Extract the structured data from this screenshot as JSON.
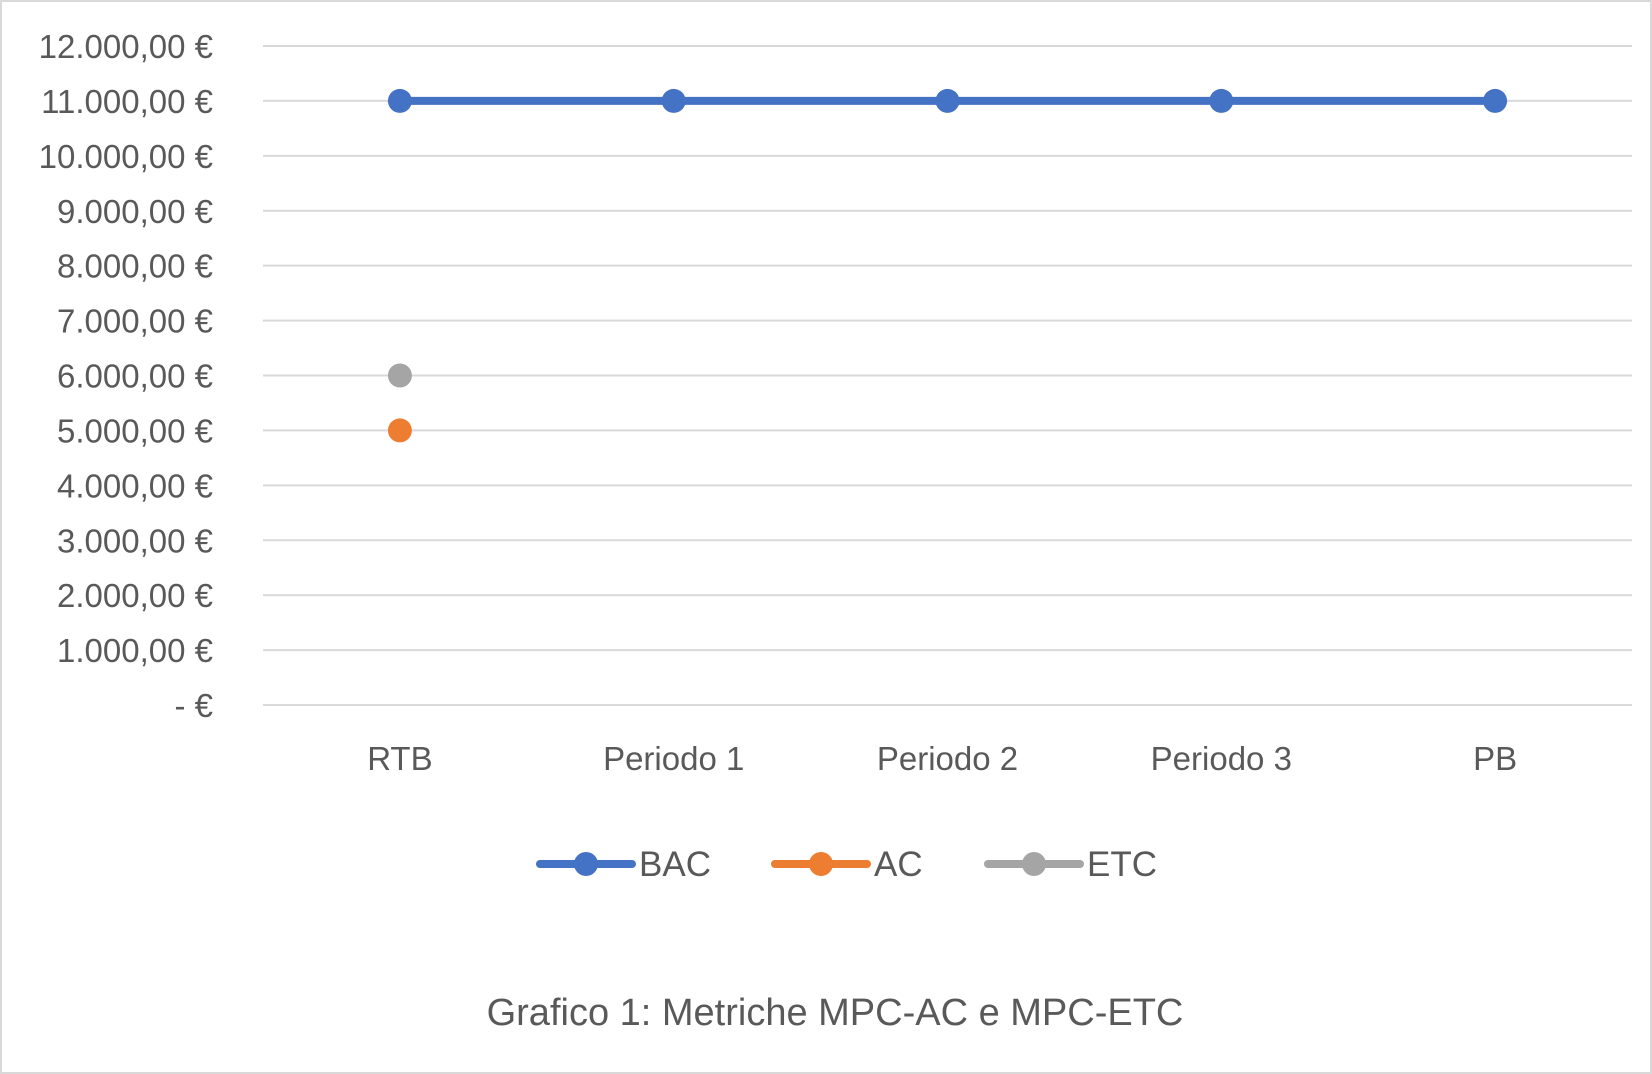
{
  "chart_data": {
    "type": "line",
    "categories": [
      "RTB",
      "Periodo 1",
      "Periodo 2",
      "Periodo 3",
      "PB"
    ],
    "series": [
      {
        "name": "BAC",
        "color": "#4472c4",
        "values": [
          11000,
          11000,
          11000,
          11000,
          11000
        ]
      },
      {
        "name": "AC",
        "color": "#ed7d31",
        "values": [
          5000,
          null,
          null,
          null,
          null
        ]
      },
      {
        "name": "ETC",
        "color": "#a5a5a5",
        "values": [
          6000,
          null,
          null,
          null,
          null
        ]
      }
    ],
    "y_ticks": [
      "-   €",
      "1.000,00 €",
      "2.000,00 €",
      "3.000,00 €",
      "4.000,00 €",
      "5.000,00 €",
      "6.000,00 €",
      "7.000,00 €",
      "8.000,00 €",
      "9.000,00 €",
      "10.000,00 €",
      "11.000,00 €",
      "12.000,00 €"
    ],
    "ylim": [
      0,
      12000
    ],
    "grid": true,
    "legend_position": "bottom",
    "caption": "Grafico 1: Metriche MPC-AC e MPC-ETC"
  }
}
